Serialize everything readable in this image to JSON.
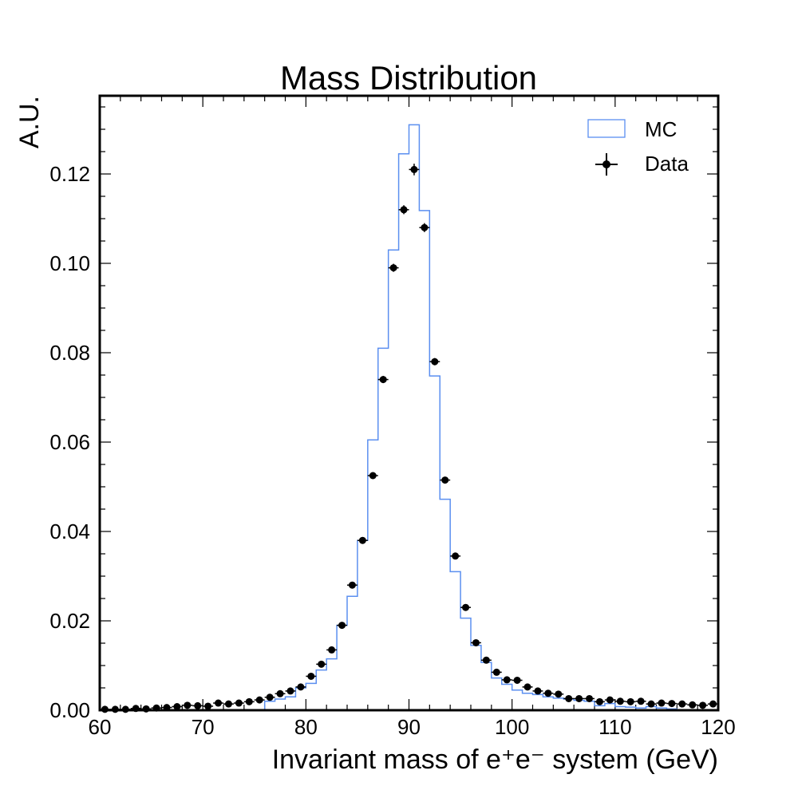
{
  "chart_data": {
    "type": "histogram",
    "title": "Mass Distribution",
    "xlabel": "Invariant mass of e⁺e⁻ system (GeV)",
    "ylabel": "A.U.",
    "xlim": [
      60,
      120
    ],
    "ylim": [
      0,
      0.1375
    ],
    "x_ticks": [
      "60",
      "70",
      "80",
      "90",
      "100",
      "110",
      "120"
    ],
    "y_ticks": [
      "0.00",
      "0.02",
      "0.04",
      "0.06",
      "0.08",
      "0.10",
      "0.12"
    ],
    "legend_position": "top-right",
    "bin_edges": [
      60,
      61,
      62,
      63,
      64,
      65,
      66,
      67,
      68,
      69,
      70,
      71,
      72,
      73,
      74,
      75,
      76,
      77,
      78,
      79,
      80,
      81,
      82,
      83,
      84,
      85,
      86,
      87,
      88,
      89,
      90,
      91,
      92,
      93,
      94,
      95,
      96,
      97,
      98,
      99,
      100,
      101,
      102,
      103,
      104,
      105,
      106,
      107,
      108,
      109,
      110,
      111,
      112,
      113,
      114,
      115,
      116,
      117,
      118,
      119,
      120
    ],
    "series": [
      {
        "name": "MC",
        "style": "step",
        "color": "#5b8ff0",
        "values": [
          0.0,
          0.0,
          0.0,
          0.0,
          0.0,
          0.0,
          0.0,
          0.0,
          0.0,
          0.0,
          0.0,
          0.0,
          0.0,
          0.0,
          0.0,
          0.0,
          0.002,
          0.0025,
          0.003,
          0.005,
          0.006,
          0.009,
          0.0115,
          0.019,
          0.0255,
          0.038,
          0.0605,
          0.081,
          0.103,
          0.1245,
          0.131,
          0.1118,
          0.0748,
          0.0472,
          0.031,
          0.0206,
          0.0145,
          0.0107,
          0.0072,
          0.0058,
          0.0045,
          0.0038,
          0.0035,
          0.003,
          0.0027,
          0.0025,
          0.0022,
          0.002,
          0.001,
          0.0015,
          0.0008,
          0.0007,
          0.0005,
          0.0008,
          0.0005,
          0.0003,
          0.0,
          0.0,
          0.0,
          0.0
        ]
      },
      {
        "name": "Data",
        "style": "errorbar",
        "color": "#000000",
        "x": [
          60.5,
          61.5,
          62.5,
          63.5,
          64.5,
          65.5,
          66.5,
          67.5,
          68.5,
          69.5,
          70.5,
          71.5,
          72.5,
          73.5,
          74.5,
          75.5,
          76.5,
          77.5,
          78.5,
          79.5,
          80.5,
          81.5,
          82.5,
          83.5,
          84.5,
          85.5,
          86.5,
          87.5,
          88.5,
          89.5,
          90.5,
          91.5,
          92.5,
          93.5,
          94.5,
          95.5,
          96.5,
          97.5,
          98.5,
          99.5,
          100.5,
          101.5,
          102.5,
          103.5,
          104.5,
          105.5,
          106.5,
          107.5,
          108.5,
          109.5,
          110.5,
          111.5,
          112.5,
          113.5,
          114.5,
          115.5,
          116.5,
          117.5,
          118.5,
          119.5
        ],
        "values": [
          0.0002,
          0.0002,
          0.0002,
          0.0004,
          0.0003,
          0.0005,
          0.0006,
          0.0008,
          0.0011,
          0.001,
          0.0009,
          0.0016,
          0.0014,
          0.0016,
          0.0019,
          0.0023,
          0.0029,
          0.0037,
          0.0043,
          0.0052,
          0.0076,
          0.0103,
          0.0135,
          0.019,
          0.028,
          0.038,
          0.0525,
          0.074,
          0.099,
          0.112,
          0.121,
          0.108,
          0.078,
          0.0515,
          0.0345,
          0.023,
          0.0151,
          0.0112,
          0.0085,
          0.0068,
          0.0067,
          0.0052,
          0.0043,
          0.0038,
          0.0036,
          0.0026,
          0.0026,
          0.0026,
          0.0019,
          0.0023,
          0.002,
          0.0019,
          0.002,
          0.0014,
          0.0016,
          0.0015,
          0.0014,
          0.0012,
          0.0011,
          0.0014
        ],
        "errors": [
          0.0001,
          0.0001,
          0.0001,
          0.0001,
          0.0001,
          0.0001,
          0.0001,
          0.0001,
          0.0001,
          0.0001,
          0.0001,
          0.0001,
          0.0001,
          0.0001,
          0.0001,
          0.0001,
          0.0002,
          0.0002,
          0.0002,
          0.0002,
          0.0003,
          0.0003,
          0.0004,
          0.0004,
          0.0005,
          0.0006,
          0.0007,
          0.0008,
          0.0009,
          0.001,
          0.0013,
          0.001,
          0.0008,
          0.0007,
          0.0006,
          0.0005,
          0.0004,
          0.0003,
          0.0003,
          0.0003,
          0.0003,
          0.0002,
          0.0002,
          0.0002,
          0.0002,
          0.0002,
          0.0002,
          0.0002,
          0.0001,
          0.0001,
          0.0001,
          0.0001,
          0.0001,
          0.0001,
          0.0001,
          0.0001,
          0.0001,
          0.0001,
          0.0001,
          0.0001
        ]
      }
    ]
  }
}
